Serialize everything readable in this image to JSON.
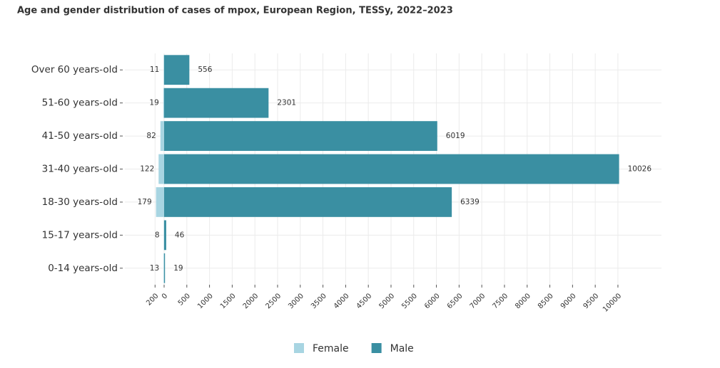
{
  "chart_data": {
    "type": "bar",
    "orientation": "horizontal",
    "layout": "pyramid",
    "title": "Age and gender distribution of cases of mpox, European Region, TESSy, 2022–2023",
    "categories": [
      "Over 60 years-old",
      "51-60 years-old",
      "41-50 years-old",
      "31-40 years-old",
      "18-30 years-old",
      "15-17 years-old",
      "0-14 years-old"
    ],
    "series": [
      {
        "name": "Female",
        "color": "#a8d5e2",
        "direction": "left",
        "values": [
          11,
          19,
          82,
          122,
          179,
          8,
          13
        ]
      },
      {
        "name": "Male",
        "color": "#3a8fa2",
        "direction": "right",
        "values": [
          556,
          2301,
          6019,
          10026,
          6339,
          46,
          19
        ]
      }
    ],
    "xlim": [
      -865,
      10960
    ],
    "xticks": [
      {
        "value": -200,
        "label": "200"
      },
      0,
      500,
      1000,
      1500,
      2000,
      2500,
      3000,
      3500,
      4000,
      4500,
      5000,
      5500,
      6000,
      6500,
      7000,
      7500,
      8000,
      8500,
      9000,
      9500,
      10000
    ],
    "grid": true,
    "legend": "bottom"
  }
}
